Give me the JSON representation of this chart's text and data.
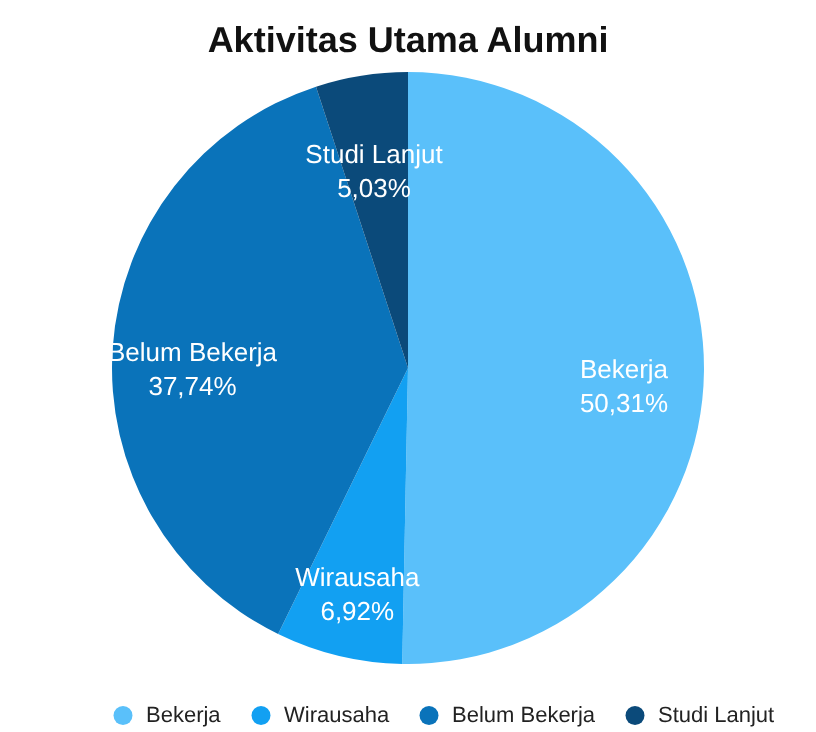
{
  "chart_data": {
    "type": "pie",
    "title": "Aktivitas Utama Alumni",
    "categories": [
      "Bekerja",
      "Wirausaha",
      "Belum Bekerja",
      "Studi Lanjut"
    ],
    "values": [
      50.31,
      6.92,
      37.74,
      5.03
    ],
    "value_labels": [
      "50,31%",
      "6,92%",
      "37,74%",
      "5,03%"
    ],
    "colors": [
      "#5ac0fa",
      "#12a0f2",
      "#0a73ba",
      "#0b4a7a"
    ],
    "legend": "bottom"
  }
}
